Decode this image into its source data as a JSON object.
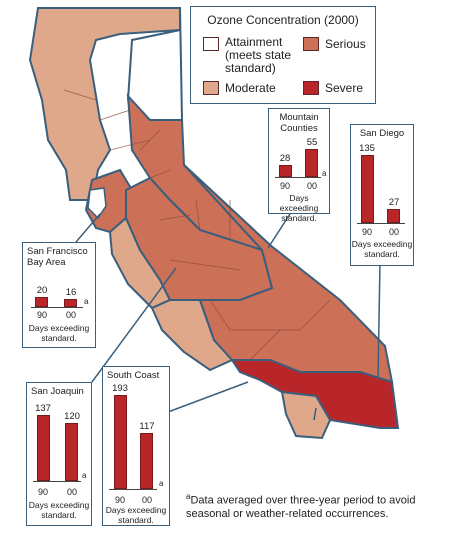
{
  "colors": {
    "attainment": "#ffffff",
    "moderate": "#dfa88a",
    "serious": "#cc7058",
    "severe": "#b9262a",
    "border": "#3a5f7d",
    "county_line": "#8a4a3a"
  },
  "legend": {
    "title": "Ozone Concentration (2000)",
    "items": [
      {
        "key": "attainment",
        "label_lines": [
          "Attainment",
          "(meets state",
          "standard)"
        ]
      },
      {
        "key": "serious",
        "label_lines": [
          "Serious"
        ]
      },
      {
        "key": "moderate",
        "label_lines": [
          "Moderate"
        ]
      },
      {
        "key": "severe",
        "label_lines": [
          "Severe"
        ]
      }
    ]
  },
  "panels": [
    {
      "id": "mountain",
      "title_lines": [
        "Mountain",
        "Counties"
      ],
      "values": [
        28,
        55
      ],
      "years": [
        "90",
        "00"
      ],
      "footnote_mark": "a",
      "caption_lines": [
        "Days exceeding",
        "standard."
      ]
    },
    {
      "id": "san-diego",
      "title_lines": [
        "San Diego"
      ],
      "values": [
        135,
        27
      ],
      "years": [
        "90",
        "00"
      ],
      "footnote_mark": "",
      "caption_lines": [
        "Days exceeding",
        "standard."
      ]
    },
    {
      "id": "sf-bay",
      "title_lines": [
        "San Francisco",
        "Bay Area"
      ],
      "values": [
        20,
        16
      ],
      "years": [
        "90",
        "00"
      ],
      "footnote_mark": "a",
      "caption_lines": [
        "Days exceeding",
        "standard."
      ]
    },
    {
      "id": "san-joaquin",
      "title_lines": [
        "San Joaquin"
      ],
      "values": [
        137,
        120
      ],
      "years": [
        "90",
        "00"
      ],
      "footnote_mark": "a",
      "caption_lines": [
        "Days exceeding",
        "standard."
      ]
    },
    {
      "id": "south-coast",
      "title_lines": [
        "South Coast"
      ],
      "values": [
        193,
        117
      ],
      "years": [
        "90",
        "00"
      ],
      "footnote_mark": "a",
      "caption_lines": [
        "Days exceeding",
        "standard."
      ]
    }
  ],
  "footnote": {
    "mark": "a",
    "text": "Data averaged over three-year period to avoid seasonal or weather-related occurrences."
  }
}
